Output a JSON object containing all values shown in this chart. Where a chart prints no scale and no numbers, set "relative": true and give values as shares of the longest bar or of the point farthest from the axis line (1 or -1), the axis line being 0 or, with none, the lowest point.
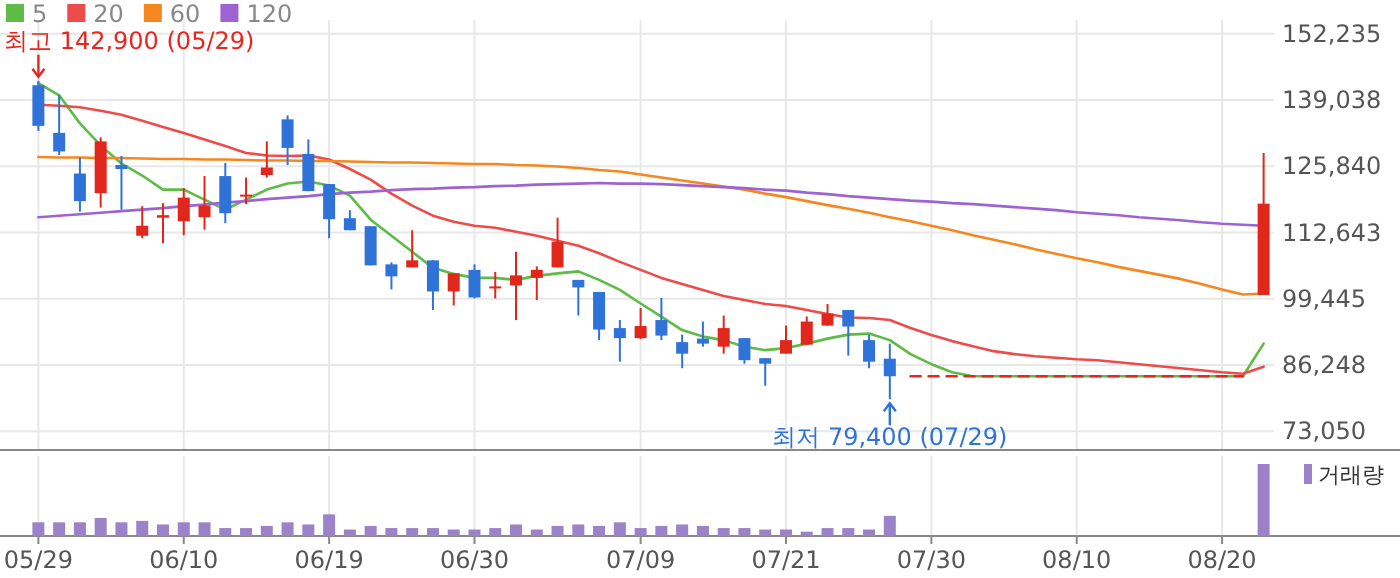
{
  "chart_data": [
    {
      "type": "candlestick",
      "categories": [
        "05/29",
        null,
        null,
        null,
        null,
        null,
        null,
        "06/10",
        null,
        null,
        null,
        null,
        null,
        null,
        "06/19",
        null,
        null,
        null,
        null,
        null,
        null,
        "06/30",
        null,
        null,
        null,
        null,
        null,
        null,
        null,
        "07/09",
        null,
        null,
        null,
        null,
        null,
        null,
        "07/21",
        null,
        null,
        null,
        null,
        null,
        null,
        "07/30",
        null,
        null,
        null,
        null,
        null,
        null,
        "08/10",
        null,
        null,
        null,
        null,
        null,
        null,
        "08/20",
        null,
        null
      ],
      "ohlc": [
        [
          142000,
          142900,
          132900,
          133900
        ],
        [
          132500,
          140100,
          128100,
          128800
        ],
        [
          124400,
          127600,
          116800,
          118900
        ],
        [
          120500,
          131600,
          117600,
          130800
        ],
        [
          126100,
          127900,
          117200,
          125300
        ],
        [
          112000,
          117900,
          111500,
          114000
        ],
        [
          115600,
          118500,
          110500,
          116100
        ],
        [
          114900,
          121500,
          112100,
          119600
        ],
        [
          115700,
          123900,
          113200,
          118000
        ],
        [
          123900,
          126500,
          114500,
          116500
        ],
        [
          120100,
          123600,
          118300,
          120200
        ],
        [
          124100,
          130800,
          123600,
          125600
        ],
        [
          135200,
          136000,
          126100,
          129500
        ],
        [
          128300,
          131200,
          120900,
          120900
        ],
        [
          122300,
          122300,
          111500,
          115300
        ],
        [
          115500,
          117100,
          113100,
          113100
        ],
        [
          113900,
          113900,
          106100,
          106100
        ],
        [
          106300,
          106700,
          101300,
          103900
        ],
        [
          105700,
          113100,
          105700,
          107100
        ],
        [
          107100,
          107100,
          97200,
          100900
        ],
        [
          100900,
          104500,
          98100,
          104500
        ],
        [
          105200,
          106300,
          99500,
          99700
        ],
        [
          101700,
          104800,
          99500,
          101900
        ],
        [
          102100,
          108800,
          95200,
          104100
        ],
        [
          103600,
          105900,
          99200,
          105200
        ],
        [
          105700,
          115600,
          105700,
          110800
        ],
        [
          103200,
          103200,
          96100,
          101700
        ],
        [
          100800,
          100800,
          91200,
          93300
        ],
        [
          93600,
          95200,
          86900,
          91600
        ],
        [
          91600,
          97600,
          91400,
          94000
        ],
        [
          95200,
          99600,
          91200,
          92100
        ],
        [
          90800,
          92300,
          85600,
          88500
        ],
        [
          91500,
          94900,
          89900,
          90500
        ],
        [
          89900,
          96100,
          88500,
          93600
        ],
        [
          91600,
          91600,
          86500,
          87200
        ],
        [
          87600,
          87600,
          82100,
          86500
        ],
        [
          88500,
          94100,
          88500,
          91200
        ],
        [
          90300,
          95900,
          90300,
          94900
        ],
        [
          94100,
          98400,
          94100,
          96500
        ],
        [
          97200,
          97200,
          88100,
          93900
        ],
        [
          91200,
          92300,
          85600,
          86900
        ],
        [
          87500,
          90500,
          79400,
          84000
        ],
        null,
        null,
        null,
        null,
        null,
        null,
        null,
        null,
        null,
        null,
        null,
        null,
        null,
        null,
        null,
        null,
        null,
        [
          100200,
          128500,
          100200,
          118400
        ]
      ],
      "series": [
        {
          "name": "5",
          "type": "line",
          "color": "#5dbb46",
          "values": [
            142400,
            140000,
            134400,
            130000,
            126400,
            124000,
            121200,
            121200,
            119200,
            117200,
            119200,
            121200,
            122400,
            122800,
            122000,
            120000,
            115200,
            112000,
            108800,
            105600,
            104400,
            103600,
            103600,
            103200,
            104000,
            104500,
            104900,
            103200,
            101200,
            98500,
            95900,
            93200,
            91900,
            91200,
            89900,
            89200,
            89600,
            90500,
            91500,
            92300,
            92500,
            91200,
            88400,
            86400,
            84800,
            84000,
            84000,
            84000,
            84000,
            84000,
            84000,
            84000,
            84000,
            84000,
            84000,
            84000,
            84000,
            84000,
            84000,
            90500
          ]
        },
        {
          "name": "20",
          "type": "line",
          "color": "#ee4b4b",
          "values": [
            138100,
            137900,
            137600,
            136900,
            136100,
            134900,
            133700,
            132500,
            131200,
            129900,
            128500,
            128000,
            127900,
            128000,
            127200,
            125300,
            123200,
            120400,
            118000,
            116000,
            114800,
            114000,
            113600,
            112800,
            112000,
            111000,
            110000,
            108500,
            106800,
            105200,
            103600,
            102400,
            101200,
            100000,
            99200,
            98400,
            98000,
            97200,
            96400,
            95700,
            95600,
            95200,
            93600,
            92200,
            91000,
            90000,
            89000,
            88400,
            88000,
            87700,
            87400,
            87200,
            86800,
            86400,
            86000,
            85600,
            85200,
            84800,
            84500,
            85900
          ]
        },
        {
          "name": "60",
          "type": "line",
          "color": "#f6871f",
          "values": [
            127700,
            127600,
            127600,
            127500,
            127500,
            127400,
            127300,
            127300,
            127200,
            127200,
            127100,
            127000,
            127000,
            126900,
            126900,
            126800,
            126700,
            126600,
            126600,
            126500,
            126400,
            126300,
            126300,
            126100,
            126000,
            125800,
            125500,
            125100,
            124800,
            124200,
            123600,
            123000,
            122400,
            121800,
            121200,
            120400,
            119700,
            118900,
            118100,
            117400,
            116600,
            115700,
            114900,
            114000,
            113100,
            112100,
            111200,
            110300,
            109300,
            108400,
            107500,
            106700,
            105800,
            105000,
            104200,
            103400,
            102400,
            101300,
            100300,
            100500
          ]
        },
        {
          "name": "120",
          "type": "line",
          "color": "#9d63d0",
          "values": [
            115700,
            116000,
            116300,
            116600,
            116900,
            117200,
            117500,
            117900,
            118200,
            118600,
            118900,
            119300,
            119600,
            119900,
            120300,
            120600,
            120800,
            121100,
            121300,
            121400,
            121600,
            121700,
            121900,
            122000,
            122200,
            122300,
            122400,
            122500,
            122400,
            122400,
            122300,
            122100,
            121900,
            121700,
            121500,
            121200,
            121000,
            120600,
            120300,
            119900,
            119600,
            119300,
            119000,
            118800,
            118500,
            118300,
            118000,
            117700,
            117400,
            117100,
            116700,
            116400,
            116100,
            115700,
            115400,
            115100,
            114700,
            114400,
            114200,
            114000
          ]
        },
        {
          "type": "line",
          "color": "#e8261f",
          "line_style": "dashed",
          "values": [
            null,
            null,
            null,
            null,
            null,
            null,
            null,
            null,
            null,
            null,
            null,
            null,
            null,
            null,
            null,
            null,
            null,
            null,
            null,
            null,
            null,
            null,
            null,
            null,
            null,
            null,
            null,
            null,
            null,
            null,
            null,
            null,
            null,
            null,
            null,
            null,
            null,
            null,
            null,
            null,
            null,
            null,
            84000,
            84000,
            84000,
            84000,
            84000,
            84000,
            84000,
            84000,
            84000,
            84000,
            84000,
            84000,
            84000,
            84000,
            84000,
            84000,
            84000,
            null
          ]
        }
      ],
      "ylim": [
        69300,
        155000
      ],
      "yticks": [
        {
          "value": 73050,
          "label": "73,050"
        },
        {
          "value": 86248,
          "label": "86,248"
        },
        {
          "value": 99445,
          "label": "99,445"
        },
        {
          "value": 112643,
          "label": "112,643"
        },
        {
          "value": 125840,
          "label": "125,840"
        },
        {
          "value": 139038,
          "label": "139,038"
        },
        {
          "value": 152235,
          "label": "152,235"
        }
      ],
      "grid": true,
      "legend": "top left",
      "tick_labels": "y",
      "annotations": [
        {
          "text": "최고 142,900 (05/29)",
          "x": "05/29",
          "y": 142900
        },
        {
          "text": "최저 79,400 (07/29)",
          "y": 79400
        }
      ]
    },
    {
      "type": "bar",
      "categories": [
        "05/29",
        null,
        null,
        null,
        null,
        null,
        null,
        "06/10",
        null,
        null,
        null,
        null,
        null,
        null,
        "06/19",
        null,
        null,
        null,
        null,
        null,
        null,
        "06/30",
        null,
        null,
        null,
        null,
        null,
        null,
        null,
        "07/09",
        null,
        null,
        null,
        null,
        null,
        null,
        "07/21",
        null,
        null,
        null,
        null,
        null,
        null,
        "07/30",
        null,
        null,
        null,
        null,
        null,
        null,
        "08/10",
        null,
        null,
        null,
        null,
        null,
        null,
        "08/20",
        null,
        null
      ],
      "relative": true,
      "series": [
        {
          "name": "거래량",
          "color": "#9b82c9",
          "values": [
            0.19,
            0.19,
            0.19,
            0.25,
            0.19,
            0.21,
            0.16,
            0.19,
            0.19,
            0.11,
            0.11,
            0.14,
            0.19,
            0.16,
            0.3,
            0.09,
            0.14,
            0.11,
            0.11,
            0.11,
            0.09,
            0.09,
            0.11,
            0.16,
            0.09,
            0.14,
            0.16,
            0.14,
            0.19,
            0.11,
            0.14,
            0.16,
            0.14,
            0.11,
            0.11,
            0.09,
            0.09,
            0.06,
            0.11,
            0.11,
            0.09,
            0.28,
            null,
            null,
            null,
            null,
            null,
            null,
            null,
            null,
            null,
            null,
            null,
            null,
            null,
            null,
            null,
            null,
            null,
            1
          ]
        }
      ],
      "grid": "x",
      "legend": "top right",
      "tick_labels": "x"
    }
  ]
}
